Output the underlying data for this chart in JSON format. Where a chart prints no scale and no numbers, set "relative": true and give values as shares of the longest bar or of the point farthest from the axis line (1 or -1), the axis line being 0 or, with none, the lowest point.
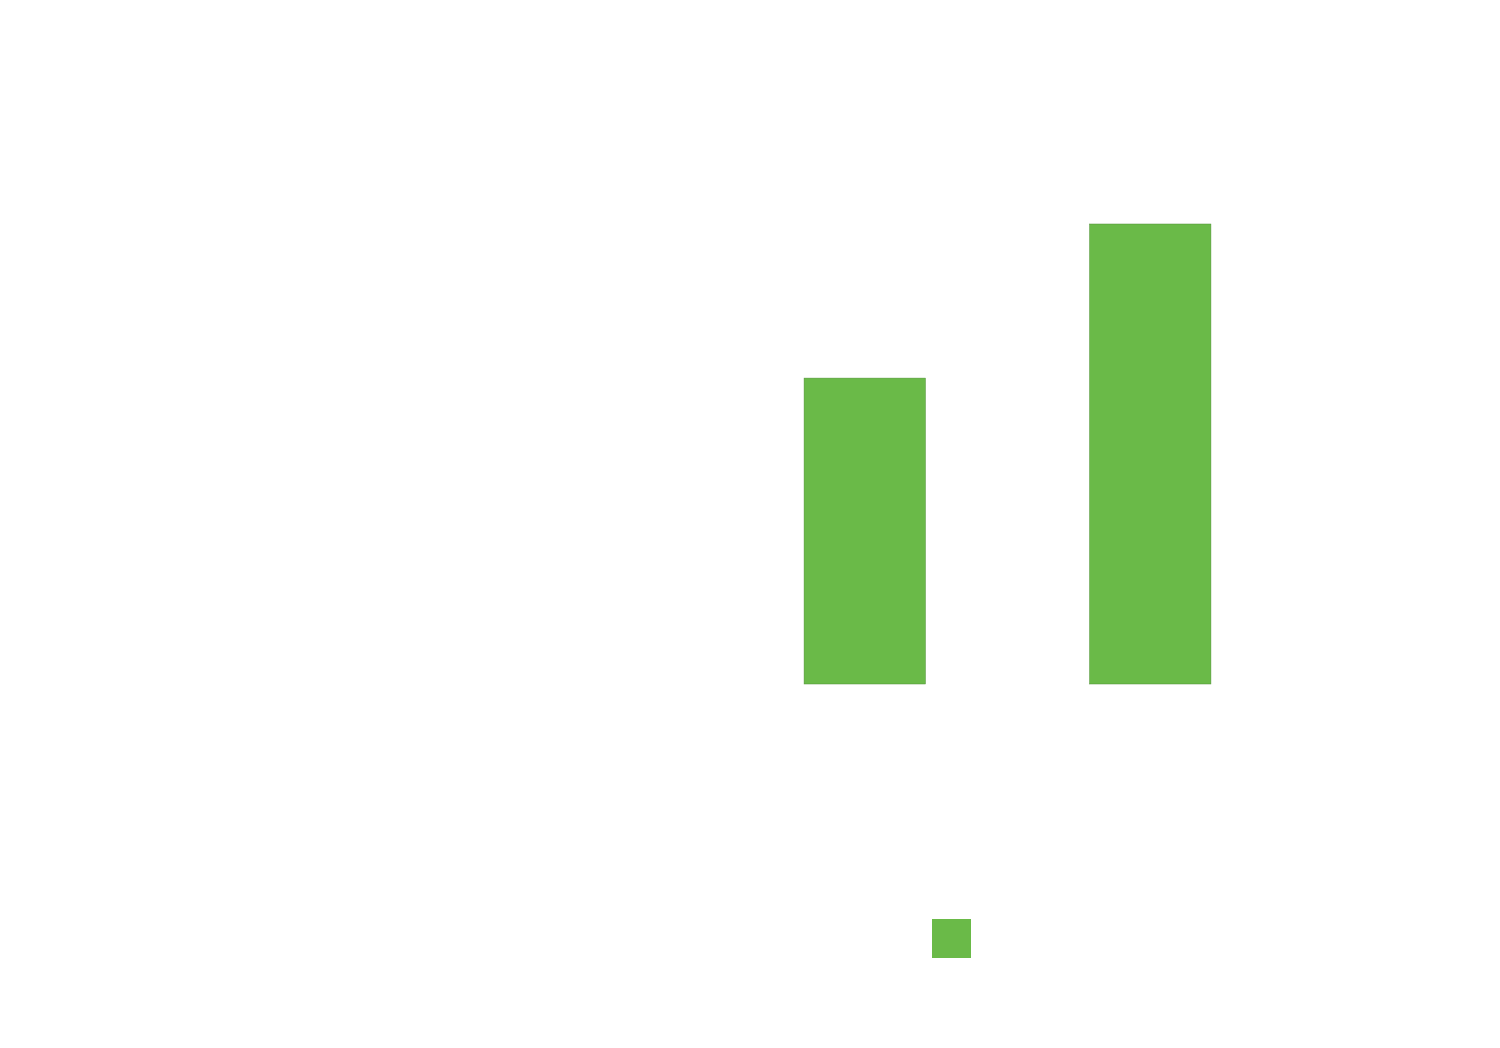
{
  "chart_data": {
    "type": "bar",
    "relative": true,
    "categories": [
      null,
      null
    ],
    "series": [
      {
        "color": "#6aba48",
        "values": [
          0.665,
          1
        ]
      }
    ]
  }
}
